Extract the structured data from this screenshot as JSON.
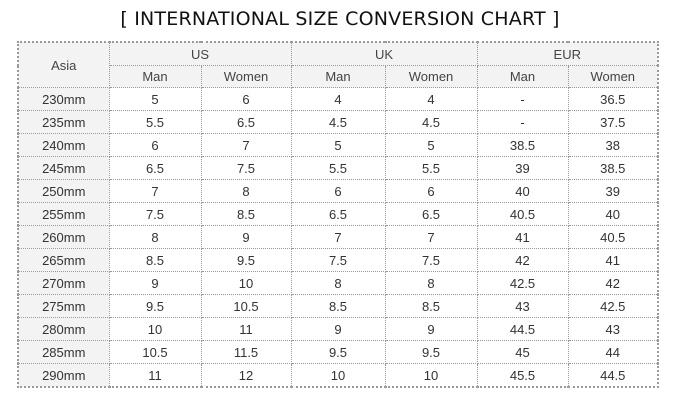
{
  "title": "[ INTERNATIONAL SIZE CONVERSION CHART ]",
  "header": {
    "asia": "Asia",
    "groups": [
      "US",
      "UK",
      "EUR"
    ],
    "sub": [
      "Man",
      "Women",
      "Man",
      "Women",
      "Man",
      "Women"
    ]
  },
  "rows": [
    [
      "230mm",
      "5",
      "6",
      "4",
      "4",
      "-",
      "36.5"
    ],
    [
      "235mm",
      "5.5",
      "6.5",
      "4.5",
      "4.5",
      "-",
      "37.5"
    ],
    [
      "240mm",
      "6",
      "7",
      "5",
      "5",
      "38.5",
      "38"
    ],
    [
      "245mm",
      "6.5",
      "7.5",
      "5.5",
      "5.5",
      "39",
      "38.5"
    ],
    [
      "250mm",
      "7",
      "8",
      "6",
      "6",
      "40",
      "39"
    ],
    [
      "255mm",
      "7.5",
      "8.5",
      "6.5",
      "6.5",
      "40.5",
      "40"
    ],
    [
      "260mm",
      "8",
      "9",
      "7",
      "7",
      "41",
      "40.5"
    ],
    [
      "265mm",
      "8.5",
      "9.5",
      "7.5",
      "7.5",
      "42",
      "41"
    ],
    [
      "270mm",
      "9",
      "10",
      "8",
      "8",
      "42.5",
      "42"
    ],
    [
      "275mm",
      "9.5",
      "10.5",
      "8.5",
      "8.5",
      "43",
      "42.5"
    ],
    [
      "280mm",
      "10",
      "11",
      "9",
      "9",
      "44.5",
      "43"
    ],
    [
      "285mm",
      "10.5",
      "11.5",
      "9.5",
      "9.5",
      "45",
      "44"
    ],
    [
      "290mm",
      "11",
      "12",
      "10",
      "10",
      "45.5",
      "44.5"
    ]
  ]
}
